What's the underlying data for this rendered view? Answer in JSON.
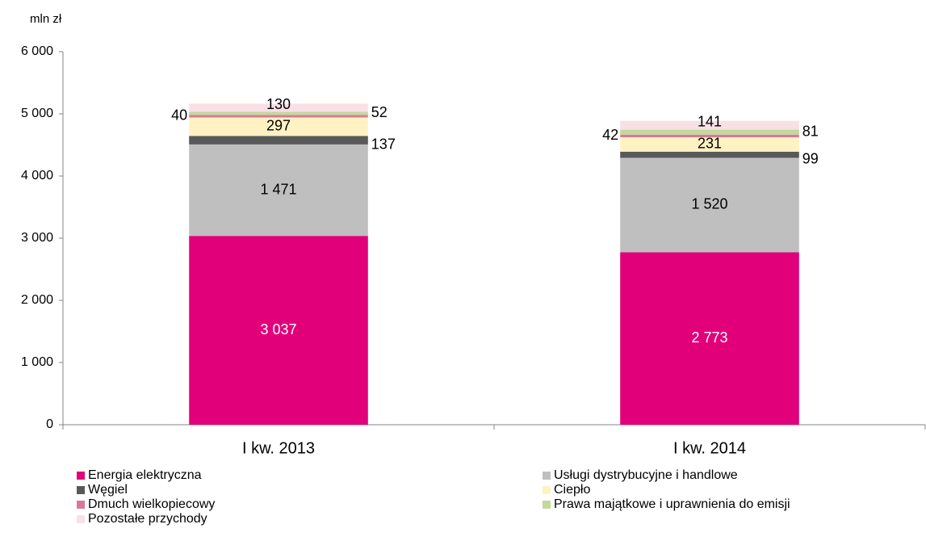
{
  "chart_data": {
    "type": "stacked_bar",
    "y_label": "mln zł",
    "categories": [
      "I kw. 2013",
      "I kw. 2014"
    ],
    "series": [
      {
        "name": "Energia elektryczna",
        "color": "#e2007a",
        "values": [
          3037,
          2773
        ],
        "value_labels": [
          "3 037",
          "2 773"
        ]
      },
      {
        "name": "Usługi dystrybucyjne i handlowe",
        "color": "#bfbfbf",
        "values": [
          1471,
          1520
        ],
        "value_labels": [
          "1 471",
          "1 520"
        ]
      },
      {
        "name": "Węgiel",
        "color": "#595959",
        "values": [
          137,
          99
        ]
      },
      {
        "name": "Ciepło",
        "color": "#fff2c2",
        "values": [
          297,
          231
        ]
      },
      {
        "name": "Dmuch wielkopiecowy",
        "color": "#d9799a",
        "values": [
          40,
          42
        ]
      },
      {
        "name": "Prawa majątkowe i uprawnienia do emisji",
        "color": "#c4d89b",
        "values": [
          52,
          81
        ]
      },
      {
        "name": "Pozostałe przychody",
        "color": "#f7e0e6",
        "values": [
          130,
          141
        ]
      }
    ],
    "ylim": [
      0,
      6000
    ],
    "yticks": [
      0,
      {
        "value": 1000,
        "label": "1 000"
      },
      {
        "value": 2000,
        "label": "2 000"
      },
      {
        "value": 3000,
        "label": "3 000"
      },
      {
        "value": 4000,
        "label": "4 000"
      },
      {
        "value": 5000,
        "label": "5 000"
      },
      {
        "value": 6000,
        "label": "6 000"
      }
    ]
  }
}
